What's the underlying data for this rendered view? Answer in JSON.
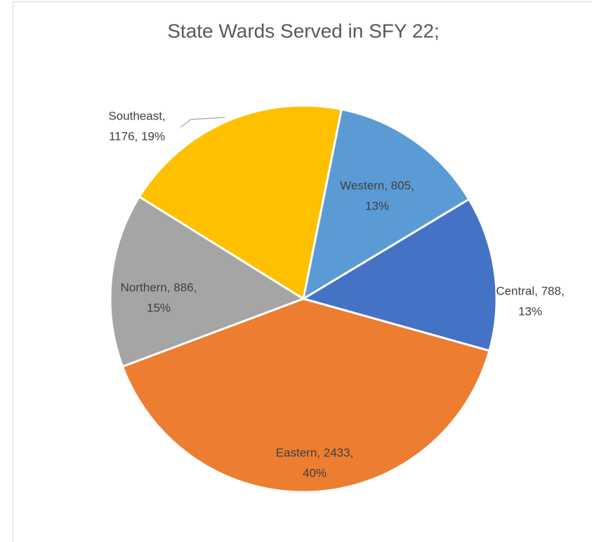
{
  "chart_data": {
    "type": "pie",
    "title": "State Wards Served in SFY 22;",
    "categories": [
      "Central",
      "Eastern",
      "Northern",
      "Southeast",
      "Western"
    ],
    "values": [
      788,
      2433,
      886,
      1176,
      805
    ],
    "colors": [
      "#4472c4",
      "#ed7d31",
      "#a5a5a5",
      "#ffc000",
      "#5b9bd5"
    ],
    "value_labels": [
      [
        "Central, 788,",
        "13%"
      ],
      [
        "Eastern, 2433,",
        "40%"
      ],
      [
        "Northern, 886,",
        "15%"
      ],
      [
        "Southeast,",
        "1176, 19%"
      ],
      [
        "Western, 805,",
        "13%"
      ]
    ]
  }
}
